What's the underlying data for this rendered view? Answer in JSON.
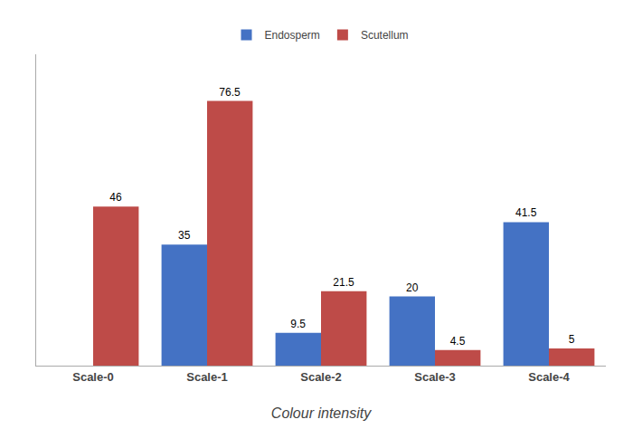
{
  "chart_data": {
    "type": "bar",
    "x_label": "Colour intensity",
    "categories": [
      "Scale-0",
      "Scale-1",
      "Scale-2",
      "Scale-3",
      "Scale-4"
    ],
    "series": [
      {
        "name": "Endosperm",
        "color": "#4472C4",
        "values": [
          0,
          35,
          9.5,
          20,
          41.5
        ],
        "value_labels": [
          null,
          "35",
          "9.5",
          "20",
          "41.5"
        ]
      },
      {
        "name": "Scutellum",
        "color": "#BE4B48",
        "values": [
          46,
          76.5,
          21.5,
          4.5,
          5
        ],
        "value_labels": [
          "46",
          "76.5",
          "21.5",
          "4.5",
          "5"
        ]
      }
    ],
    "ylim": [
      0,
      90
    ],
    "yticks": [],
    "grid": false,
    "tick_labels": "x",
    "data_labels": true,
    "legend": "top"
  }
}
